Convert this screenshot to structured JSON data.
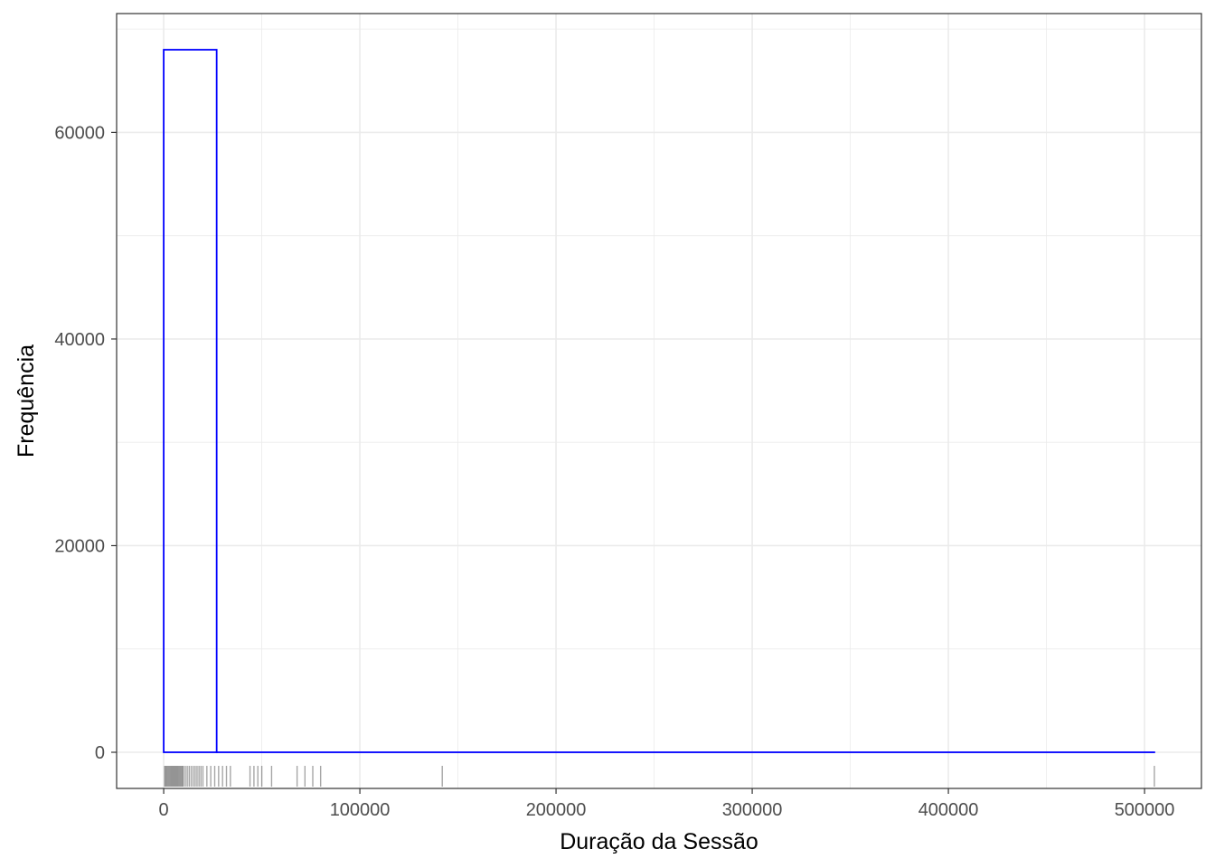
{
  "chart_data": {
    "type": "bar",
    "title": "",
    "xlabel": "Duração da Sessão",
    "ylabel": "Frequência",
    "xlim": [
      -24000,
      529000
    ],
    "ylim": [
      -3500,
      71500
    ],
    "x_ticks": [
      0,
      100000,
      200000,
      300000,
      400000,
      500000
    ],
    "x_tick_labels": [
      "0",
      "100000",
      "200000",
      "300000",
      "400000",
      "500000"
    ],
    "y_ticks": [
      0,
      20000,
      40000,
      60000
    ],
    "y_tick_labels": [
      "0",
      "20000",
      "40000",
      "60000"
    ],
    "grid": true,
    "legend": "none",
    "bins": [
      {
        "x0": 0,
        "x1": 27000,
        "count": 68000
      },
      {
        "x0": 27000,
        "x1": 505000,
        "count": 0
      }
    ],
    "rug_x": [
      500,
      1000,
      1500,
      2000,
      2500,
      3000,
      3500,
      4000,
      4500,
      5000,
      5500,
      6000,
      6500,
      7000,
      7500,
      8000,
      8500,
      9000,
      9500,
      10000,
      11000,
      12000,
      13000,
      14000,
      15000,
      16000,
      17000,
      18000,
      19000,
      20000,
      22000,
      24000,
      26000,
      28000,
      30000,
      32000,
      34000,
      44000,
      46000,
      48000,
      50000,
      55000,
      68000,
      72000,
      76000,
      80000,
      142000,
      505000
    ],
    "colors": {
      "bar_outline": "#0000ff",
      "rug": "#000000",
      "grid": "#ebebeb",
      "panel_border": "#333333"
    }
  }
}
